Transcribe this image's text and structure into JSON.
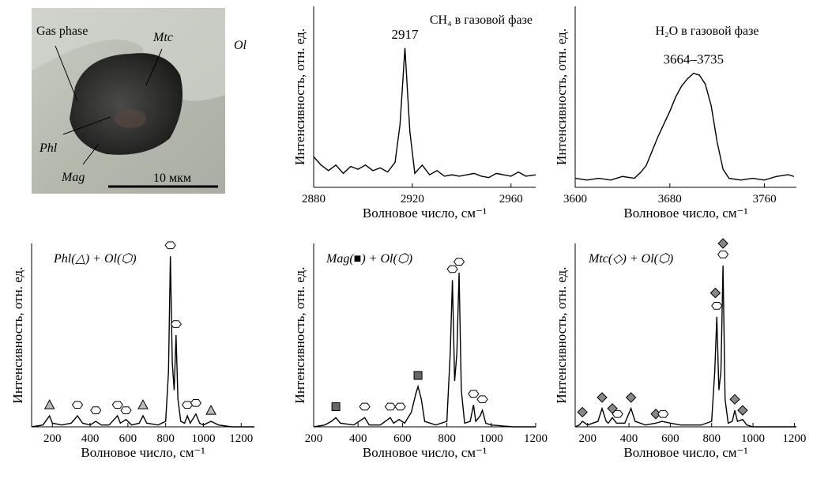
{
  "photo": {
    "labels": [
      "Gas phase",
      "Mtc",
      "Ol",
      "Phl",
      "Mag"
    ],
    "scale_bar": "10 мкм"
  },
  "chart_data": [
    {
      "type": "line",
      "title": "CH₄ в газовой фазе",
      "annotation": "2917",
      "xlabel": "Волновое число, см⁻¹",
      "ylabel": "Интенсивность, отн. ед.",
      "color": "#000000",
      "x": [
        2880,
        2883,
        2886,
        2889,
        2892,
        2895,
        2898,
        2901,
        2904,
        2907,
        2910,
        2913,
        2915,
        2917,
        2919,
        2921,
        2924,
        2927,
        2930,
        2933,
        2936,
        2939,
        2942,
        2945,
        2948,
        2951,
        2954,
        2957,
        2960,
        2963,
        2966,
        2970
      ],
      "values": [
        22,
        16,
        12,
        16,
        10,
        15,
        13,
        16,
        12,
        14,
        11,
        18,
        45,
        100,
        40,
        10,
        16,
        9,
        12,
        8,
        9,
        8,
        9,
        10,
        8,
        7,
        10,
        9,
        8,
        11,
        8,
        9
      ],
      "xlim": [
        2880,
        2970
      ],
      "ylim": [
        0,
        130
      ],
      "xticks": [
        2880,
        2920,
        2960
      ],
      "markers": []
    },
    {
      "type": "line",
      "title": "H₂O в газовой фазе",
      "annotation": "3664–3735",
      "xlabel": "Волновое число, см⁻¹",
      "ylabel": "Интенсивность, отн. ед.",
      "color": "#000000",
      "x": [
        3600,
        3610,
        3620,
        3630,
        3640,
        3650,
        3655,
        3660,
        3665,
        3670,
        3675,
        3680,
        3685,
        3690,
        3695,
        3700,
        3705,
        3710,
        3715,
        3720,
        3725,
        3730,
        3740,
        3750,
        3760,
        3770,
        3780,
        3785
      ],
      "values": [
        5,
        4,
        5,
        4,
        6,
        5,
        8,
        12,
        20,
        28,
        35,
        42,
        50,
        56,
        60,
        63,
        62,
        57,
        45,
        25,
        10,
        5,
        4,
        5,
        4,
        6,
        7,
        6
      ],
      "xlim": [
        3600,
        3787
      ],
      "ylim": [
        0,
        100
      ],
      "xticks": [
        3600,
        3680,
        3760
      ],
      "markers": []
    },
    {
      "type": "line",
      "title": "Phl(△) + Ol(⬡)",
      "xlabel": "Волновое число, см⁻¹",
      "ylabel": "Интенсивность, отн. ед.",
      "color": "#000000",
      "x": [
        90,
        150,
        185,
        200,
        250,
        300,
        333,
        360,
        400,
        430,
        460,
        500,
        545,
        560,
        590,
        620,
        660,
        680,
        700,
        760,
        800,
        815,
        825,
        835,
        845,
        855,
        865,
        880,
        900,
        915,
        930,
        960,
        980,
        1000,
        1040,
        1080,
        1150,
        1270
      ],
      "values": [
        0,
        1,
        6,
        2,
        1,
        2,
        6,
        2,
        1,
        3,
        1,
        1,
        6,
        2,
        4,
        1,
        2,
        6,
        2,
        1,
        3,
        30,
        93,
        35,
        20,
        50,
        15,
        3,
        2,
        6,
        2,
        7,
        2,
        1,
        3,
        1,
        0,
        0
      ],
      "xlim": [
        90,
        1270
      ],
      "ylim": [
        0,
        100
      ],
      "xticks": [
        200,
        400,
        600,
        800,
        1000,
        1200
      ],
      "markers": [
        {
          "x": 185,
          "y": 12,
          "shape": "triangle"
        },
        {
          "x": 333,
          "y": 12,
          "shape": "hexagon"
        },
        {
          "x": 430,
          "y": 9,
          "shape": "hexagon"
        },
        {
          "x": 545,
          "y": 12,
          "shape": "hexagon"
        },
        {
          "x": 590,
          "y": 9,
          "shape": "hexagon"
        },
        {
          "x": 680,
          "y": 12,
          "shape": "triangle"
        },
        {
          "x": 825,
          "y": 99,
          "shape": "hexagon"
        },
        {
          "x": 855,
          "y": 56,
          "shape": "hexagon"
        },
        {
          "x": 915,
          "y": 12,
          "shape": "hexagon"
        },
        {
          "x": 960,
          "y": 13,
          "shape": "hexagon"
        },
        {
          "x": 1040,
          "y": 9,
          "shape": "triangle"
        }
      ]
    },
    {
      "type": "line",
      "title": "Mag(■) + Ol(⬡)",
      "xlabel": "Волновое число, см⁻¹",
      "ylabel": "Интенсивность, отн. ед.",
      "color": "#000000",
      "x": [
        200,
        250,
        280,
        300,
        320,
        380,
        430,
        450,
        500,
        545,
        560,
        585,
        610,
        640,
        660,
        670,
        685,
        700,
        750,
        800,
        815,
        825,
        835,
        845,
        855,
        865,
        880,
        905,
        920,
        930,
        950,
        960,
        975,
        1000,
        1100,
        1200
      ],
      "values": [
        0,
        1,
        3,
        5,
        2,
        1,
        5,
        1,
        1,
        5,
        2,
        4,
        2,
        8,
        18,
        22,
        15,
        3,
        1,
        3,
        40,
        80,
        25,
        40,
        84,
        20,
        2,
        3,
        12,
        3,
        6,
        9,
        2,
        1,
        0,
        0
      ],
      "xlim": [
        200,
        1200
      ],
      "ylim": [
        0,
        100
      ],
      "xticks": [
        200,
        400,
        600,
        800,
        1000,
        1200
      ],
      "markers": [
        {
          "x": 300,
          "y": 11,
          "shape": "square"
        },
        {
          "x": 430,
          "y": 11,
          "shape": "hexagon"
        },
        {
          "x": 545,
          "y": 11,
          "shape": "hexagon"
        },
        {
          "x": 590,
          "y": 11,
          "shape": "hexagon"
        },
        {
          "x": 670,
          "y": 28,
          "shape": "square"
        },
        {
          "x": 825,
          "y": 86,
          "shape": "hexagon"
        },
        {
          "x": 855,
          "y": 90,
          "shape": "hexagon"
        },
        {
          "x": 920,
          "y": 18,
          "shape": "hexagon"
        },
        {
          "x": 960,
          "y": 15,
          "shape": "hexagon"
        }
      ]
    },
    {
      "type": "line",
      "title": "Mtc(◇) + Ol(⬡)",
      "xlabel": "Волновое число, см⁻¹",
      "ylabel": "Интенсивность, отн. ед.",
      "color": "#000000",
      "x": [
        140,
        160,
        175,
        200,
        250,
        270,
        290,
        300,
        320,
        340,
        380,
        410,
        430,
        480,
        530,
        560,
        600,
        650,
        750,
        800,
        815,
        825,
        835,
        845,
        855,
        865,
        880,
        900,
        912,
        925,
        950,
        970,
        1000,
        1200,
        1210
      ],
      "values": [
        0,
        1,
        3,
        1,
        3,
        10,
        3,
        2,
        5,
        2,
        2,
        10,
        3,
        1,
        2,
        3,
        2,
        1,
        1,
        3,
        30,
        60,
        20,
        30,
        88,
        15,
        2,
        3,
        9,
        3,
        4,
        1,
        0,
        0,
        0
      ],
      "xlim": [
        140,
        1210
      ],
      "ylim": [
        0,
        100
      ],
      "xticks": [
        200,
        400,
        600,
        800,
        1000,
        1200
      ],
      "markers": [
        {
          "x": 175,
          "y": 8,
          "shape": "diamond"
        },
        {
          "x": 270,
          "y": 16,
          "shape": "diamond"
        },
        {
          "x": 320,
          "y": 10,
          "shape": "diamond"
        },
        {
          "x": 345,
          "y": 7,
          "shape": "hexagon"
        },
        {
          "x": 410,
          "y": 16,
          "shape": "diamond"
        },
        {
          "x": 530,
          "y": 7,
          "shape": "diamond"
        },
        {
          "x": 565,
          "y": 7,
          "shape": "hexagon"
        },
        {
          "x": 825,
          "y": 66,
          "shape": "hexagon"
        },
        {
          "x": 818,
          "y": 73,
          "shape": "diamond"
        },
        {
          "x": 855,
          "y": 94,
          "shape": "hexagon"
        },
        {
          "x": 855,
          "y": 100,
          "shape": "diamond"
        },
        {
          "x": 912,
          "y": 15,
          "shape": "diamond"
        },
        {
          "x": 950,
          "y": 9,
          "shape": "diamond"
        }
      ]
    }
  ]
}
